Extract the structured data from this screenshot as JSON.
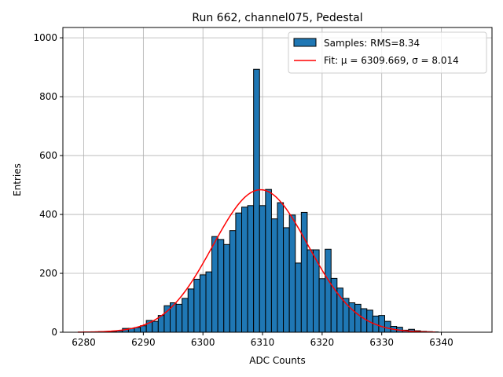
{
  "chart_data": {
    "type": "bar",
    "title": "Run 662, channel075, Pedestal",
    "xlabel": "ADC Counts",
    "ylabel": "Entries",
    "xlim": [
      6276.5,
      6348.5
    ],
    "ylim": [
      0,
      1035
    ],
    "x_ticks": [
      6280,
      6290,
      6300,
      6310,
      6320,
      6330,
      6340
    ],
    "y_ticks": [
      0,
      200,
      400,
      600,
      800,
      1000
    ],
    "grid": true,
    "legend_position": "top-right",
    "bin_width": 1,
    "bin_centers": [
      6280,
      6281,
      6282,
      6283,
      6284,
      6285,
      6286,
      6287,
      6288,
      6289,
      6290,
      6291,
      6292,
      6293,
      6294,
      6295,
      6296,
      6297,
      6298,
      6299,
      6300,
      6301,
      6302,
      6303,
      6304,
      6305,
      6306,
      6307,
      6308,
      6309,
      6310,
      6311,
      6312,
      6313,
      6314,
      6315,
      6316,
      6317,
      6318,
      6319,
      6320,
      6321,
      6322,
      6323,
      6324,
      6325,
      6326,
      6327,
      6328,
      6329,
      6330,
      6331,
      6332,
      6333,
      6334,
      6335,
      6336,
      6337,
      6338,
      6339
    ],
    "values": [
      0,
      1,
      1,
      2,
      2,
      3,
      5,
      13,
      13,
      16,
      22,
      40,
      37,
      57,
      90,
      100,
      95,
      115,
      147,
      180,
      195,
      205,
      325,
      315,
      298,
      345,
      405,
      425,
      430,
      893,
      430,
      485,
      385,
      440,
      355,
      398,
      235,
      407,
      280,
      280,
      182,
      282,
      183,
      150,
      115,
      100,
      95,
      80,
      75,
      55,
      57,
      37,
      20,
      17,
      7,
      10,
      5,
      3,
      2,
      1
    ],
    "series": [
      {
        "name": "Samples: RMS=8.34",
        "kind": "histogram",
        "color": "#1f77b4"
      },
      {
        "name": "Fit: μ = 6309.669, σ = 8.014",
        "kind": "line",
        "color": "#ff0000",
        "mu": 6309.669,
        "sigma": 8.014,
        "amplitude": 484,
        "x_range": [
          6279,
          6339
        ]
      }
    ]
  }
}
